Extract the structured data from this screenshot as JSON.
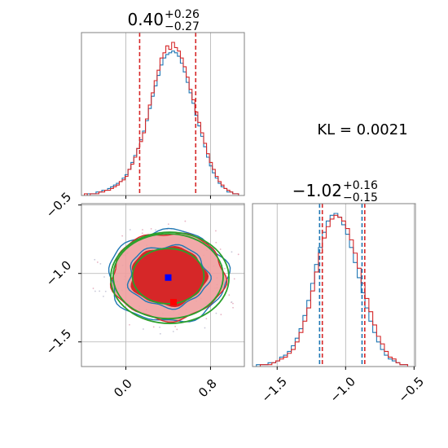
{
  "chart_data": {
    "type": "corner",
    "kl_label": "KL = 0.0021",
    "colors": {
      "blue": "#1f77b4",
      "red": "#d62728",
      "green": "#2ca02c",
      "grid": "#b0b0b0",
      "spine": "#808080",
      "red_fill_light": "#f0a0a0"
    },
    "param1": {
      "title_center": "0.40",
      "title_plus": "+0.26",
      "title_minus": "−0.27",
      "median": 0.4,
      "quantiles": [
        0.13,
        0.66
      ],
      "xlim": [
        -0.42,
        1.12
      ],
      "xticks": [
        0.0,
        0.8
      ],
      "xtick_labels": [
        "0.0",
        "0.8"
      ],
      "hist_red": [
        0,
        1,
        0,
        1,
        1,
        1,
        2,
        2,
        3,
        3,
        4,
        5,
        6,
        8,
        9,
        11,
        15,
        18,
        22,
        27,
        31,
        36,
        44,
        52,
        59,
        66,
        72,
        79,
        82,
        86,
        84,
        88,
        85,
        83,
        79,
        74,
        68,
        61,
        55,
        48,
        42,
        36,
        30,
        24,
        19,
        15,
        11,
        8,
        6,
        4,
        3,
        2,
        1,
        1,
        0,
        0
      ],
      "hist_blue": [
        0,
        0,
        1,
        1,
        1,
        2,
        2,
        3,
        3,
        4,
        5,
        6,
        7,
        8,
        10,
        12,
        15,
        19,
        23,
        27,
        32,
        37,
        43,
        50,
        57,
        63,
        69,
        75,
        79,
        81,
        82,
        83,
        82,
        80,
        76,
        71,
        65,
        59,
        53,
        46,
        40,
        34,
        28,
        22,
        17,
        13,
        10,
        7,
        5,
        4,
        2,
        2,
        1,
        1,
        0,
        0
      ]
    },
    "param2": {
      "title_center": "−1.02",
      "title_plus": "+0.16",
      "title_minus": "−0.15",
      "median": -1.02,
      "quantiles_red": [
        -1.17,
        -0.86
      ],
      "quantiles_blue": [
        -1.19,
        -0.88
      ],
      "xlim": [
        -1.68,
        -0.49
      ],
      "xticks": [
        -1.5,
        -1.0,
        -0.5
      ],
      "xtick_labels": [
        "−1.5",
        "−1.0",
        "−0.5"
      ],
      "hist_red": [
        0,
        0,
        1,
        1,
        1,
        2,
        3,
        4,
        5,
        7,
        9,
        13,
        18,
        24,
        31,
        40,
        50,
        60,
        68,
        74,
        78,
        80,
        79,
        77,
        73,
        67,
        60,
        52,
        44,
        36,
        29,
        22,
        16,
        12,
        8,
        5,
        4,
        2,
        1,
        1,
        0,
        0
      ],
      "hist_blue": [
        0,
        1,
        1,
        1,
        2,
        2,
        3,
        5,
        6,
        8,
        11,
        15,
        20,
        27,
        35,
        44,
        54,
        63,
        71,
        77,
        80,
        81,
        79,
        75,
        70,
        63,
        55,
        47,
        39,
        31,
        24,
        18,
        13,
        9,
        6,
        4,
        3,
        2,
        1,
        1,
        0,
        0
      ]
    },
    "joint": {
      "xlim": [
        -0.42,
        1.12
      ],
      "ylim": [
        -1.68,
        -0.49
      ],
      "yticks": [
        -0.5,
        -1.0,
        -1.5
      ],
      "ytick_labels": [
        "−0.5",
        "−1.0",
        "−1.5"
      ],
      "xticks": [
        0.0,
        0.8
      ],
      "xtick_labels": [
        "0.0",
        "0.8"
      ],
      "blue_marker": [
        0.4,
        -1.03
      ],
      "red_marker": [
        0.45,
        -1.21
      ],
      "sigma_x": 0.26,
      "sigma_y": 0.155
    }
  }
}
